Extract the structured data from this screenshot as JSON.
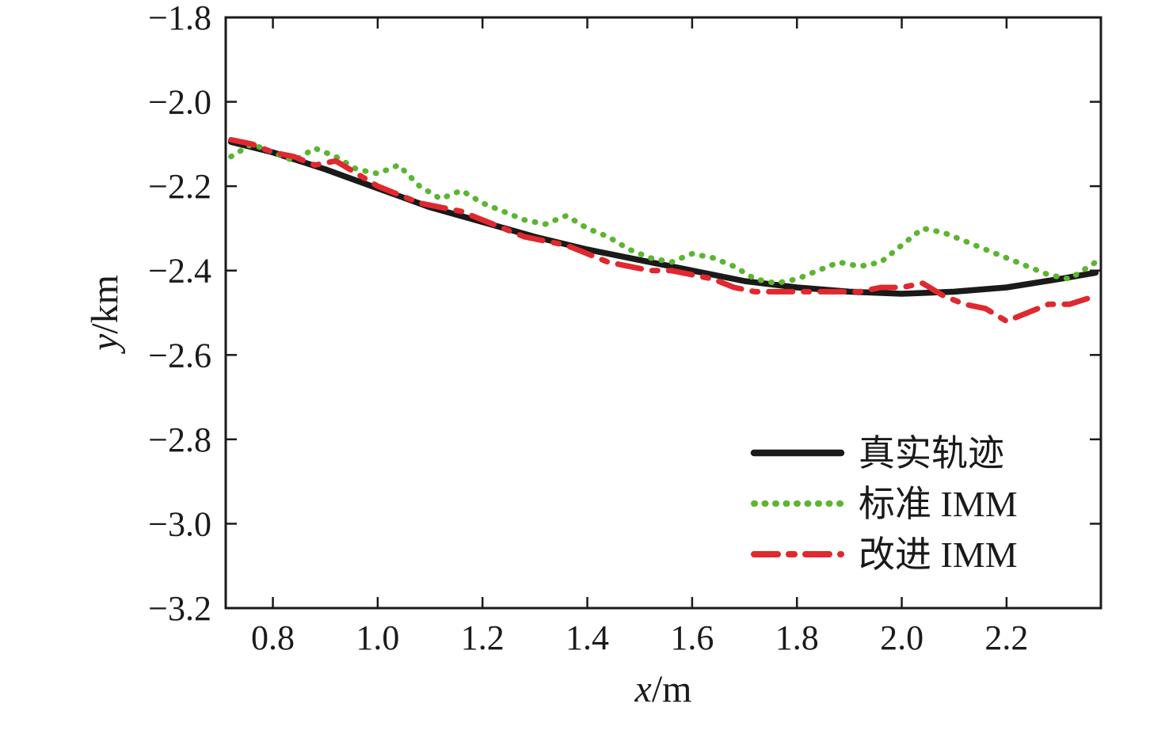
{
  "chart_data": {
    "type": "line",
    "title": "",
    "xlabel": "x/m",
    "ylabel": "y/km",
    "xlim": [
      0.71,
      2.38
    ],
    "ylim": [
      -3.2,
      -1.8
    ],
    "xticks": [
      0.8,
      1.0,
      1.2,
      1.4,
      1.6,
      1.8,
      2.0,
      2.2
    ],
    "yticks": [
      -1.8,
      -2.0,
      -2.2,
      -2.4,
      -2.6,
      -2.8,
      -3.0,
      -3.2
    ],
    "grid": false,
    "legend_position": "lower right",
    "series": [
      {
        "name": "真实轨迹",
        "color": "#1a1a1a",
        "style": "solid",
        "width": 7.5,
        "x": [
          0.72,
          0.8,
          0.9,
          1.0,
          1.1,
          1.2,
          1.3,
          1.4,
          1.5,
          1.6,
          1.7,
          1.8,
          1.9,
          2.0,
          2.1,
          2.2,
          2.3,
          2.37
        ],
        "y": [
          -2.095,
          -2.12,
          -2.16,
          -2.205,
          -2.25,
          -2.285,
          -2.32,
          -2.35,
          -2.375,
          -2.4,
          -2.425,
          -2.44,
          -2.45,
          -2.455,
          -2.45,
          -2.44,
          -2.42,
          -2.405
        ]
      },
      {
        "name": "标准 IMM",
        "color": "#5cb531",
        "style": "dotted",
        "width": 7,
        "x": [
          0.72,
          0.76,
          0.8,
          0.84,
          0.88,
          0.92,
          0.96,
          1.0,
          1.04,
          1.08,
          1.12,
          1.16,
          1.2,
          1.24,
          1.28,
          1.32,
          1.36,
          1.4,
          1.44,
          1.48,
          1.52,
          1.56,
          1.6,
          1.64,
          1.68,
          1.72,
          1.76,
          1.8,
          1.84,
          1.88,
          1.92,
          1.96,
          2.0,
          2.04,
          2.08,
          2.12,
          2.16,
          2.2,
          2.24,
          2.28,
          2.32,
          2.37
        ],
        "y": [
          -2.13,
          -2.1,
          -2.12,
          -2.14,
          -2.11,
          -2.13,
          -2.16,
          -2.17,
          -2.15,
          -2.2,
          -2.23,
          -2.21,
          -2.24,
          -2.26,
          -2.28,
          -2.29,
          -2.27,
          -2.3,
          -2.32,
          -2.35,
          -2.37,
          -2.38,
          -2.36,
          -2.37,
          -2.39,
          -2.42,
          -2.43,
          -2.42,
          -2.4,
          -2.38,
          -2.39,
          -2.38,
          -2.34,
          -2.3,
          -2.31,
          -2.33,
          -2.35,
          -2.37,
          -2.39,
          -2.41,
          -2.42,
          -2.38
        ]
      },
      {
        "name": "改进 IMM",
        "color": "#e0282e",
        "style": "dashdot",
        "width": 7,
        "x": [
          0.72,
          0.76,
          0.8,
          0.84,
          0.88,
          0.92,
          0.96,
          1.0,
          1.04,
          1.08,
          1.12,
          1.16,
          1.2,
          1.24,
          1.28,
          1.32,
          1.36,
          1.4,
          1.44,
          1.48,
          1.52,
          1.56,
          1.6,
          1.64,
          1.68,
          1.72,
          1.76,
          1.8,
          1.84,
          1.88,
          1.92,
          1.96,
          2.0,
          2.04,
          2.08,
          2.12,
          2.16,
          2.2,
          2.24,
          2.28,
          2.32,
          2.37
        ],
        "y": [
          -2.09,
          -2.1,
          -2.12,
          -2.13,
          -2.15,
          -2.14,
          -2.17,
          -2.2,
          -2.22,
          -2.24,
          -2.25,
          -2.26,
          -2.28,
          -2.3,
          -2.32,
          -2.33,
          -2.34,
          -2.36,
          -2.38,
          -2.39,
          -2.4,
          -2.4,
          -2.41,
          -2.42,
          -2.44,
          -2.45,
          -2.45,
          -2.45,
          -2.45,
          -2.45,
          -2.45,
          -2.44,
          -2.44,
          -2.43,
          -2.46,
          -2.48,
          -2.49,
          -2.52,
          -2.5,
          -2.48,
          -2.48,
          -2.46
        ]
      }
    ]
  },
  "legend": {
    "items": [
      {
        "label": "真实轨迹"
      },
      {
        "label": "标准 IMM"
      },
      {
        "label": "改进 IMM"
      }
    ]
  }
}
